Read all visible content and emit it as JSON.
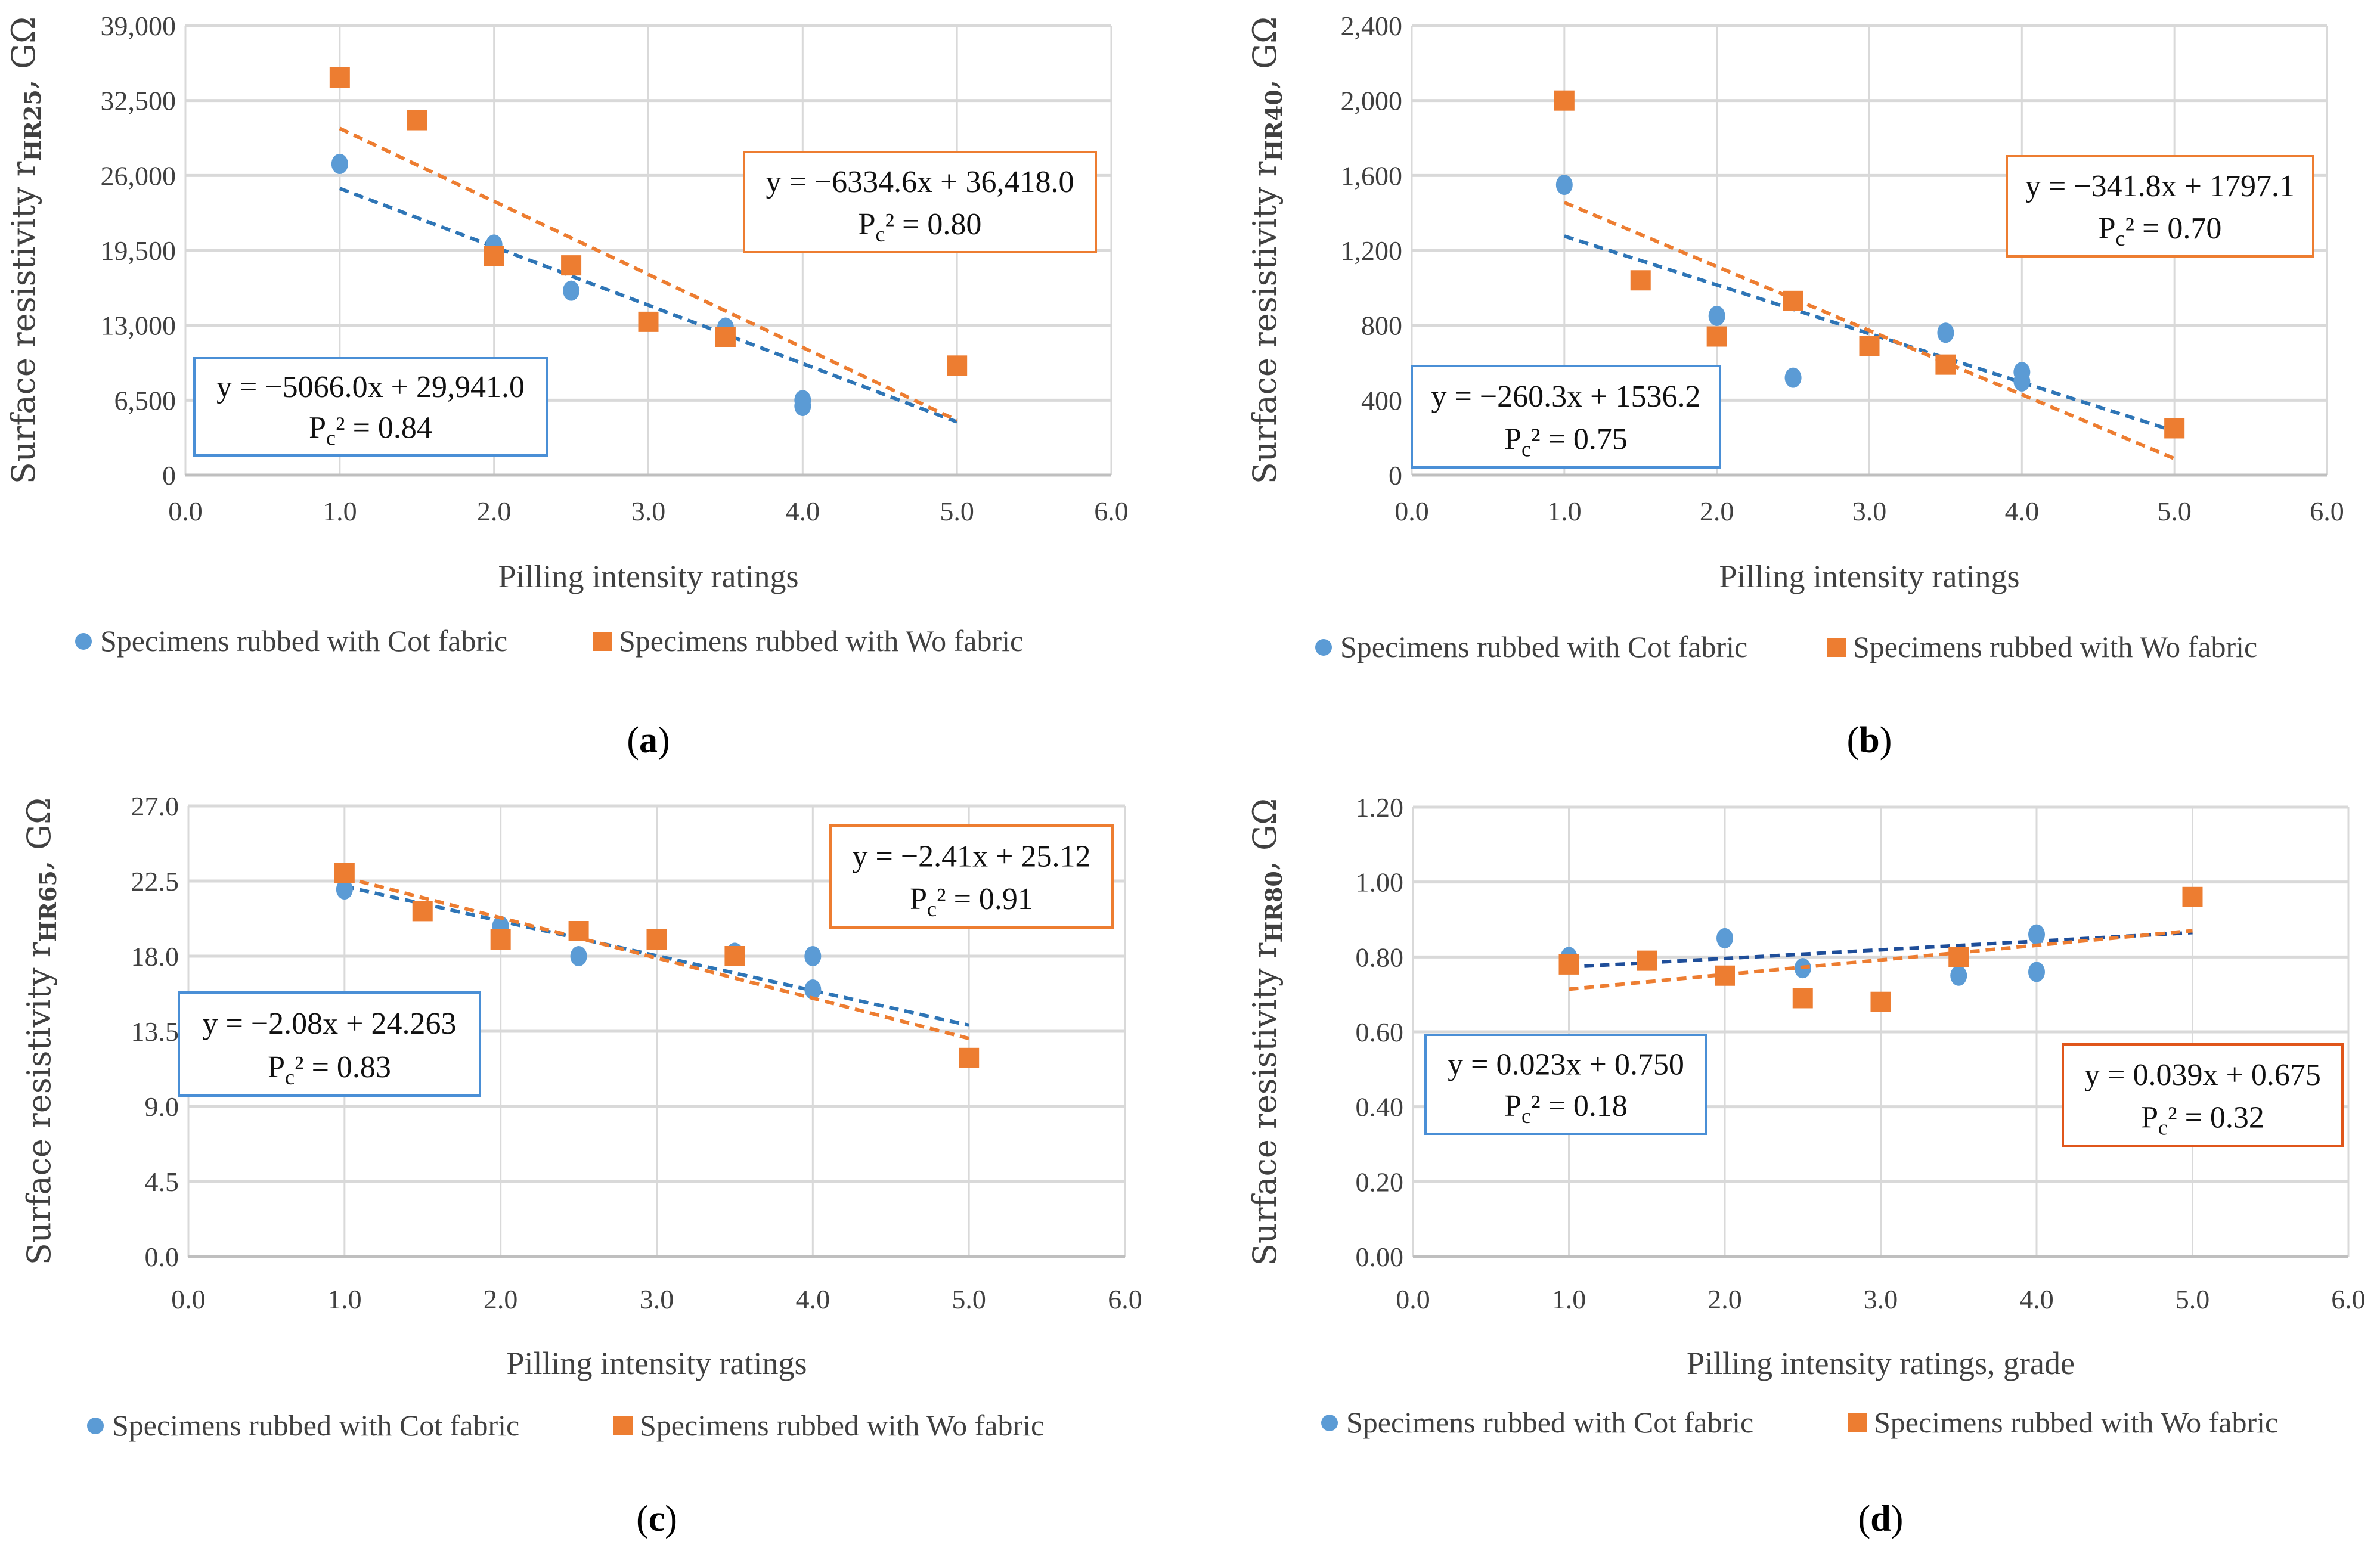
{
  "colors": {
    "cot": "#5B9BD5",
    "wo": "#ED7D31",
    "cot_trend": "#2E75B6",
    "cot_trend_d": "#1F4E99",
    "grid": "#D9D9D9",
    "box_cot": "#4A8FD6",
    "box_wo": "#ED7D31",
    "box_wo_d": "#E0561B"
  },
  "chart_data": [
    {
      "type": "scatter",
      "caption": "a",
      "ylabel_parts": [
        "Surface resistivity r",
        "HR25",
        ", GΩ"
      ],
      "xlabel": "Pilling intensity ratings",
      "xlim": [
        0,
        6
      ],
      "ylim": [
        0,
        39000
      ],
      "xticks": [
        "0.0",
        "1.0",
        "2.0",
        "3.0",
        "4.0",
        "5.0",
        "6.0"
      ],
      "yticks": [
        "0",
        "6,500",
        "13,000",
        "19,500",
        "26,000",
        "32,500",
        "39,000"
      ],
      "grid": true,
      "legend_position": "bottom",
      "series": [
        {
          "name": "Specimens rubbed with Cot fabric",
          "marker": "circle",
          "points": [
            [
              1,
              27000
            ],
            [
              2,
              20000
            ],
            [
              2.5,
              16000
            ],
            [
              3.5,
              12800
            ],
            [
              4,
              6500
            ],
            [
              4,
              6000
            ]
          ],
          "trend": {
            "slope": -5066.0,
            "intercept": 29941.0,
            "x_range": [
              1,
              5
            ]
          },
          "equation": "y = −5066.0x + 29,941.0",
          "r2_parts": [
            "P",
            "c",
            "² = 0.84"
          ]
        },
        {
          "name": "Specimens rubbed with Wo fabric",
          "marker": "square",
          "points": [
            [
              1,
              34500
            ],
            [
              1.5,
              30800
            ],
            [
              2,
              19000
            ],
            [
              2.5,
              18200
            ],
            [
              3,
              13300
            ],
            [
              3.5,
              12000
            ],
            [
              5,
              9500
            ]
          ],
          "trend": {
            "slope": -6334.6,
            "intercept": 36418.0,
            "x_range": [
              1,
              5
            ]
          },
          "equation": "y = −6334.6x + 36,418.0",
          "r2_parts": [
            "P",
            "c",
            "² = 0.80"
          ]
        }
      ]
    },
    {
      "type": "scatter",
      "caption": "b",
      "ylabel_parts": [
        "Surface resistivity r",
        "HR40",
        ", GΩ"
      ],
      "xlabel": "Pilling intensity ratings",
      "xlim": [
        0,
        6
      ],
      "ylim": [
        0,
        2400
      ],
      "xticks": [
        "0.0",
        "1.0",
        "2.0",
        "3.0",
        "4.0",
        "5.0",
        "6.0"
      ],
      "yticks": [
        "0",
        "400",
        "800",
        "1,200",
        "1,600",
        "2,000",
        "2,400"
      ],
      "grid": true,
      "legend_position": "bottom",
      "series": [
        {
          "name": "Specimens rubbed with Cot fabric",
          "marker": "circle",
          "points": [
            [
              1,
              1550
            ],
            [
              2,
              850
            ],
            [
              2.5,
              520
            ],
            [
              3.5,
              760
            ],
            [
              4,
              550
            ],
            [
              4,
              500
            ]
          ],
          "trend": {
            "slope": -260.3,
            "intercept": 1536.2,
            "x_range": [
              1,
              5
            ]
          },
          "equation": "y = −260.3x + 1536.2",
          "r2_parts": [
            "P",
            "c",
            "² = 0.75"
          ]
        },
        {
          "name": "Specimens rubbed with Wo fabric",
          "marker": "square",
          "points": [
            [
              1,
              2000
            ],
            [
              1.5,
              1040
            ],
            [
              2,
              740
            ],
            [
              2.5,
              930
            ],
            [
              3,
              690
            ],
            [
              3.5,
              590
            ],
            [
              5,
              250
            ]
          ],
          "trend": {
            "slope": -341.8,
            "intercept": 1797.1,
            "x_range": [
              1,
              5
            ]
          },
          "equation": "y = −341.8x + 1797.1",
          "r2_parts": [
            "P",
            "c",
            "² = 0.70"
          ]
        }
      ]
    },
    {
      "type": "scatter",
      "caption": "c",
      "ylabel_parts": [
        "Surface resistivity r",
        "HR65",
        ", GΩ"
      ],
      "xlabel": "Pilling intensity ratings",
      "xlim": [
        0,
        6
      ],
      "ylim": [
        0,
        27
      ],
      "xticks": [
        "0.0",
        "1.0",
        "2.0",
        "3.0",
        "4.0",
        "5.0",
        "6.0"
      ],
      "yticks": [
        "0.0",
        "4.5",
        "9.0",
        "13.5",
        "18.0",
        "22.5",
        "27.0"
      ],
      "grid": true,
      "legend_position": "bottom",
      "series": [
        {
          "name": "Specimens rubbed with Cot fabric",
          "marker": "circle",
          "points": [
            [
              1,
              22.0
            ],
            [
              2,
              19.8
            ],
            [
              2.5,
              18.0
            ],
            [
              3.5,
              18.2
            ],
            [
              4,
              18.0
            ],
            [
              4,
              16.0
            ]
          ],
          "trend": {
            "slope": -2.08,
            "intercept": 24.263,
            "x_range": [
              1,
              5
            ]
          },
          "equation": "y = −2.08x + 24.263",
          "r2_parts": [
            "P",
            "c",
            "² = 0.83"
          ]
        },
        {
          "name": "Specimens rubbed with Wo fabric",
          "marker": "square",
          "points": [
            [
              1,
              23.0
            ],
            [
              1.5,
              20.7
            ],
            [
              2,
              19.0
            ],
            [
              2.5,
              19.5
            ],
            [
              3,
              19.0
            ],
            [
              3.5,
              18.0
            ],
            [
              5,
              11.9
            ]
          ],
          "trend": {
            "slope": -2.41,
            "intercept": 25.12,
            "x_range": [
              1,
              5
            ]
          },
          "equation": "y = −2.41x + 25.12",
          "r2_parts": [
            "P",
            "c",
            "² = 0.91"
          ]
        }
      ]
    },
    {
      "type": "scatter",
      "caption": "d",
      "ylabel_parts": [
        "Surface resistivity r",
        "HR80",
        ", GΩ"
      ],
      "xlabel": "Pilling intensity ratings, grade",
      "xlim": [
        0,
        6
      ],
      "ylim": [
        0,
        1.2
      ],
      "xticks": [
        "0.0",
        "1.0",
        "2.0",
        "3.0",
        "4.0",
        "5.0",
        "6.0"
      ],
      "yticks": [
        "0.00",
        "0.20",
        "0.40",
        "0.60",
        "0.80",
        "1.00",
        "1.20"
      ],
      "grid": true,
      "legend_position": "bottom",
      "series": [
        {
          "name": "Specimens rubbed with Cot fabric",
          "marker": "circle",
          "points": [
            [
              1,
              0.8
            ],
            [
              2,
              0.85
            ],
            [
              2.5,
              0.77
            ],
            [
              3.5,
              0.75
            ],
            [
              4,
              0.86
            ],
            [
              4,
              0.76
            ]
          ],
          "trend": {
            "slope": 0.023,
            "intercept": 0.75,
            "x_range": [
              1,
              5
            ]
          },
          "equation": "y = 0.023x + 0.750",
          "r2_parts": [
            "P",
            "c",
            "² = 0.18"
          ]
        },
        {
          "name": "Specimens rubbed with Wo fabric",
          "marker": "square",
          "points": [
            [
              1,
              0.78
            ],
            [
              1.5,
              0.79
            ],
            [
              2,
              0.75
            ],
            [
              2.5,
              0.69
            ],
            [
              3,
              0.68
            ],
            [
              3.5,
              0.8
            ],
            [
              5,
              0.96
            ]
          ],
          "trend": {
            "slope": 0.039,
            "intercept": 0.675,
            "x_range": [
              1,
              5
            ]
          },
          "equation": "y = 0.039x + 0.675",
          "r2_parts": [
            "P",
            "c",
            "² = 0.32"
          ]
        }
      ]
    }
  ]
}
